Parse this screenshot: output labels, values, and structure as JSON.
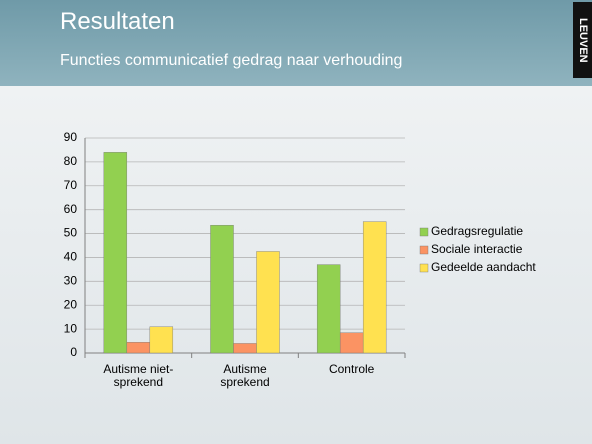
{
  "slide": {
    "title": "Resultaten",
    "subtitle": "Functies communicatief gedrag naar verhouding",
    "logo": "LEUVEN"
  },
  "chart_data": {
    "type": "bar",
    "categories": [
      "Autisme niet-sprekend",
      "Autisme sprekend",
      "Controle"
    ],
    "series": [
      {
        "name": "Gedragsregulatie",
        "color": "#92d050",
        "values": [
          84,
          53.5,
          37
        ]
      },
      {
        "name": "Sociale interactie",
        "color": "#fb9363",
        "values": [
          4.5,
          4,
          8.5
        ]
      },
      {
        "name": "Gedeelde aandacht",
        "color": "#ffe150",
        "values": [
          11,
          42.5,
          55
        ]
      }
    ],
    "ylim": [
      0,
      90
    ],
    "yticks": [
      0,
      10,
      20,
      30,
      40,
      50,
      60,
      70,
      80,
      90
    ],
    "grid": true,
    "legend": "right"
  }
}
